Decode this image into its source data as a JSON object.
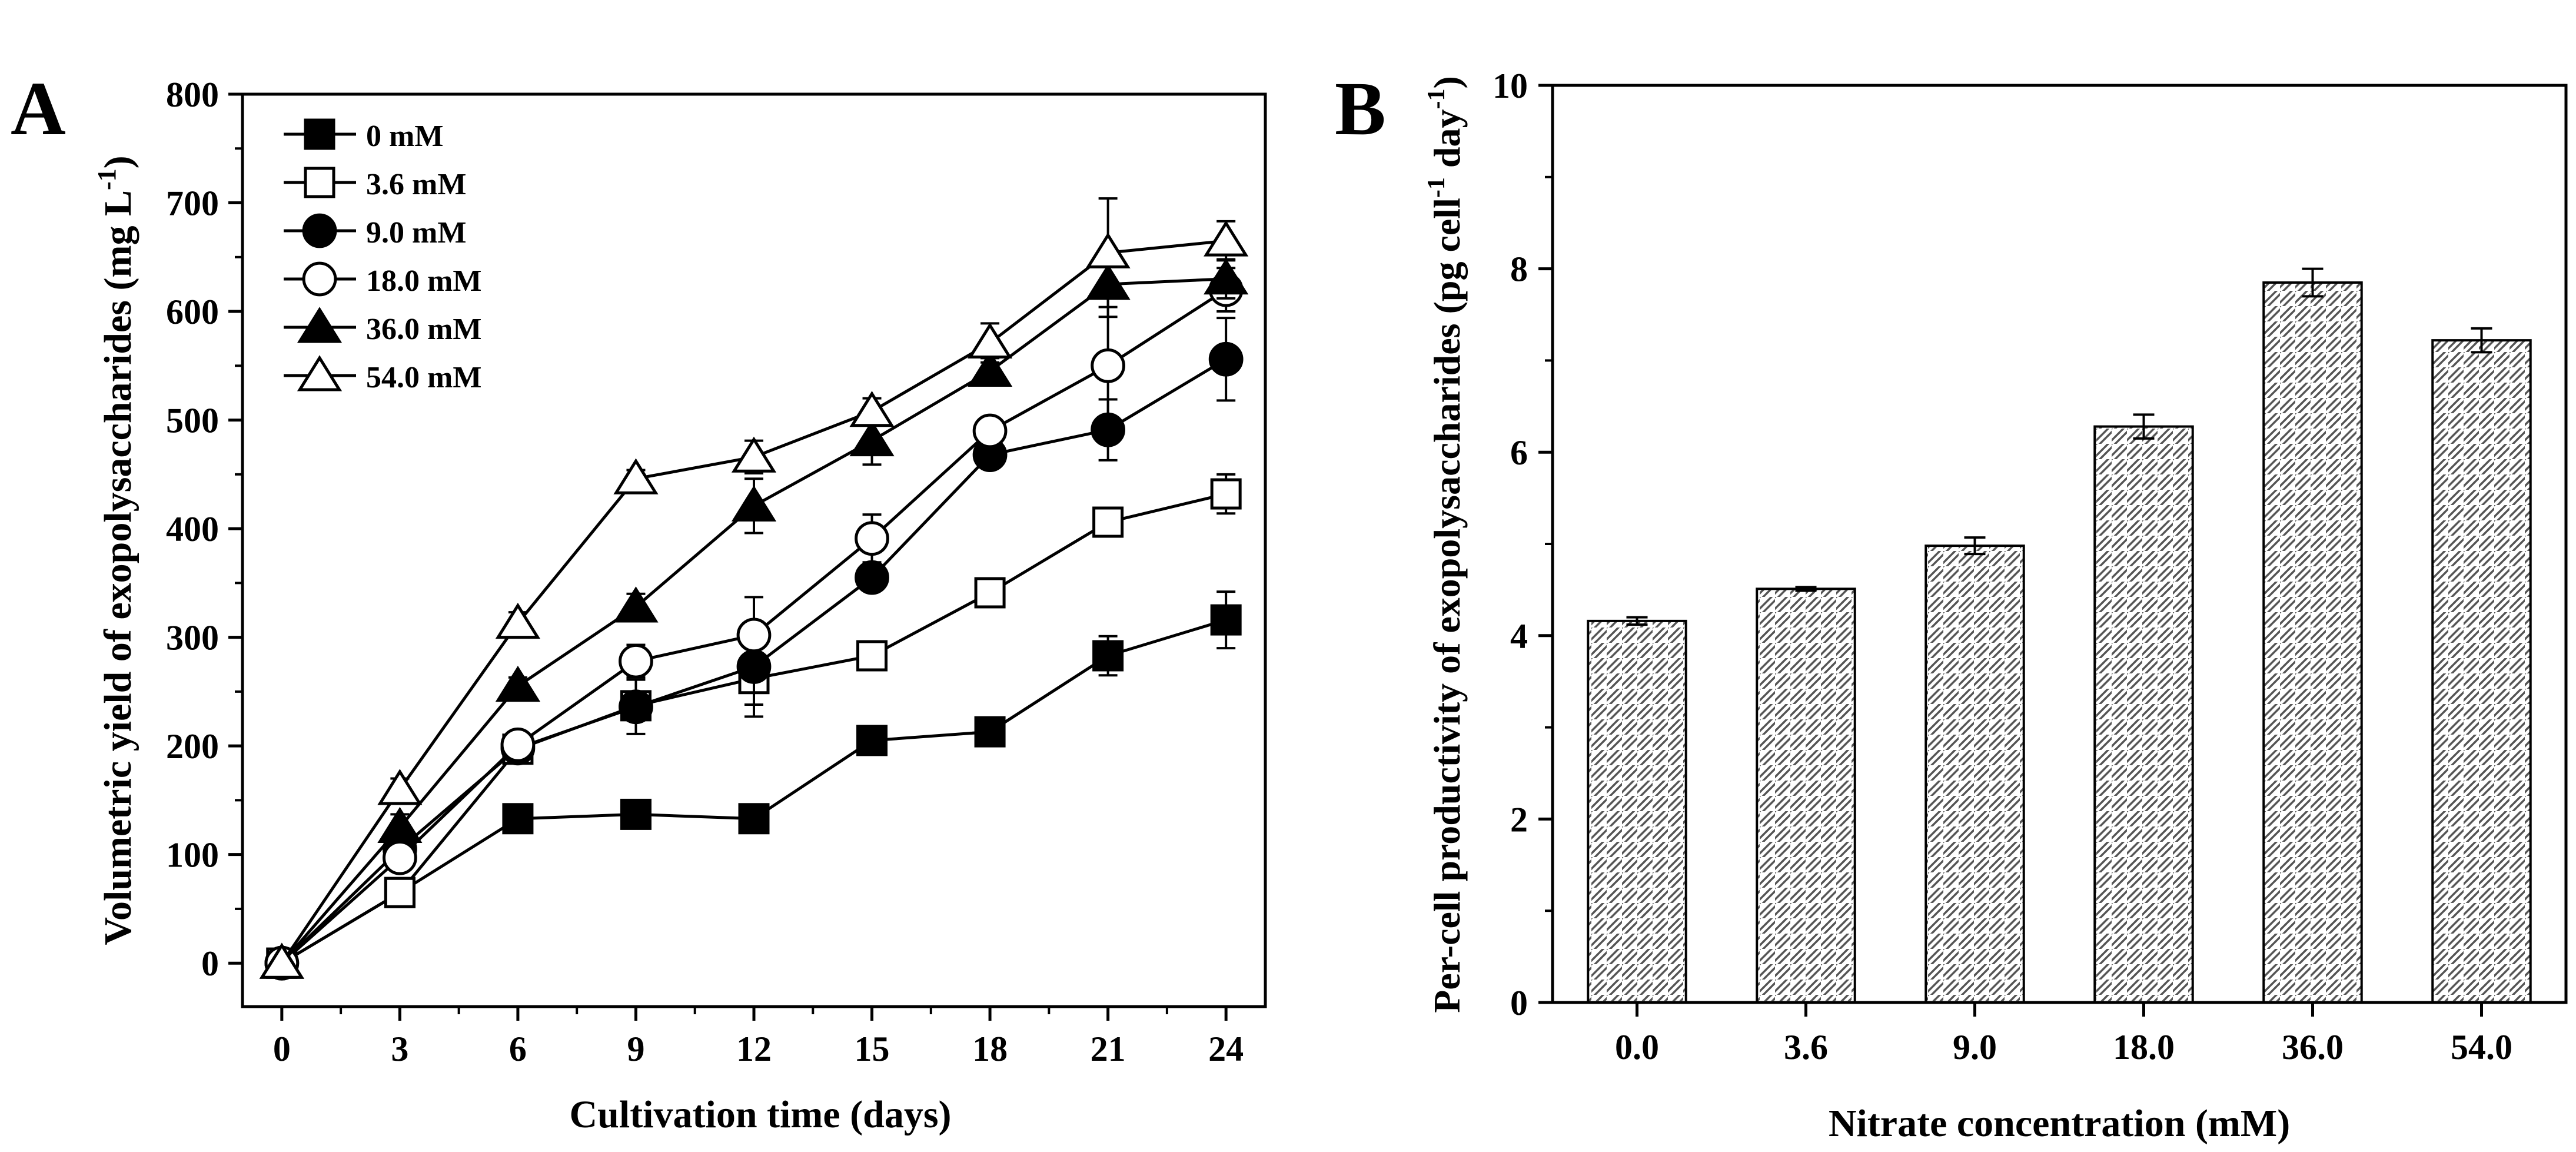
{
  "chart_data": [
    {
      "panel": "A",
      "type": "line",
      "xlabel": "Cultivation time (days)",
      "ylabel": "Volumetric yield of exopolysaccharides (mg L",
      "ylabel_sup": "-1",
      "ylabel_end": ")",
      "xlim": [
        -1,
        25
      ],
      "ylim": [
        -40,
        800
      ],
      "xticks": [
        "0",
        "3",
        "6",
        "9",
        "12",
        "15",
        "18",
        "21",
        "24"
      ],
      "yticks": [
        "0",
        "100",
        "200",
        "300",
        "400",
        "500",
        "600",
        "700",
        "800"
      ],
      "x": [
        0,
        3,
        6,
        9,
        12,
        15,
        18,
        21,
        24
      ],
      "legend_position": "top-left",
      "series": [
        {
          "name": "0 mM",
          "marker": "square",
          "filled": true,
          "values": [
            0,
            65,
            133,
            137,
            133,
            205,
            213,
            283,
            316
          ],
          "errors": [
            0,
            8,
            6,
            6,
            6,
            6,
            6,
            18,
            26
          ]
        },
        {
          "name": "3.6 mM",
          "marker": "square",
          "filled": false,
          "values": [
            0,
            65,
            197,
            237,
            262,
            283,
            341,
            406,
            432
          ],
          "errors": [
            0,
            8,
            6,
            10,
            35,
            10,
            10,
            10,
            18
          ]
        },
        {
          "name": "9.0 mM",
          "marker": "circle",
          "filled": true,
          "values": [
            0,
            105,
            198,
            236,
            273,
            355,
            468,
            491,
            556
          ],
          "errors": [
            0,
            10,
            6,
            25,
            35,
            12,
            10,
            28,
            38
          ]
        },
        {
          "name": "18.0 mM",
          "marker": "circle",
          "filled": false,
          "values": [
            0,
            97,
            201,
            278,
            302,
            391,
            490,
            550,
            620
          ],
          "errors": [
            0,
            10,
            6,
            15,
            35,
            22,
            8,
            65,
            20
          ]
        },
        {
          "name": "36.0 mM",
          "marker": "triangle",
          "filled": true,
          "values": [
            0,
            125,
            255,
            328,
            421,
            481,
            545,
            625,
            630
          ],
          "errors": [
            0,
            12,
            8,
            12,
            25,
            22,
            12,
            30,
            18
          ]
        },
        {
          "name": "54.0 mM",
          "marker": "triangle",
          "filled": false,
          "values": [
            0,
            160,
            313,
            446,
            466,
            508,
            571,
            654,
            665
          ],
          "errors": [
            0,
            10,
            10,
            8,
            15,
            12,
            18,
            50,
            18
          ]
        }
      ]
    },
    {
      "panel": "B",
      "type": "bar",
      "xlabel": "Nitrate concentration (mM)",
      "ylabel": "Per-cell productivity of exopolysaccharides (pg cell",
      "ylabel_sup1": "-1",
      "ylabel_mid": " day",
      "ylabel_sup2": "-1",
      "ylabel_end": ")",
      "ylim": [
        0,
        10
      ],
      "yticks": [
        "0",
        "2",
        "4",
        "6",
        "8",
        "10"
      ],
      "categories": [
        "0.0",
        "3.6",
        "9.0",
        "18.0",
        "36.0",
        "54.0"
      ],
      "values": [
        4.16,
        4.51,
        4.98,
        6.28,
        7.85,
        7.22
      ],
      "errors": [
        0.04,
        0.02,
        0.09,
        0.13,
        0.15,
        0.13
      ],
      "fill": "diagonal hatch"
    }
  ]
}
